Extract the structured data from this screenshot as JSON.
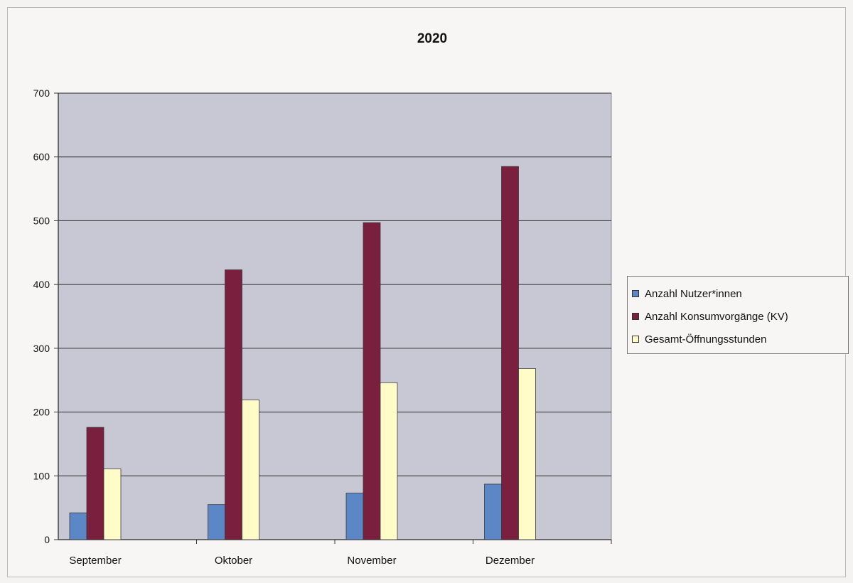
{
  "chart_data": {
    "type": "bar",
    "title": "2020",
    "categories": [
      "September",
      "Oktober",
      "November",
      "Dezember"
    ],
    "series": [
      {
        "name": "Anzahl Nutzer*innen",
        "values": [
          42,
          55,
          73,
          87
        ],
        "color": "#5b87c7"
      },
      {
        "name": "Anzahl Konsumvorgänge (KV)",
        "values": [
          176,
          423,
          497,
          585
        ],
        "color": "#7a1f3d"
      },
      {
        "name": "Gesamt-Öffnungsstunden",
        "values": [
          111,
          219,
          246,
          268
        ],
        "color": "#fffcc8"
      }
    ],
    "ylim": [
      0,
      700
    ],
    "yticks": [
      "0",
      "100",
      "200",
      "300",
      "400",
      "500",
      "600",
      "700"
    ],
    "grid": true,
    "plot_background": "#c8c8d4",
    "legend_position": "right"
  }
}
